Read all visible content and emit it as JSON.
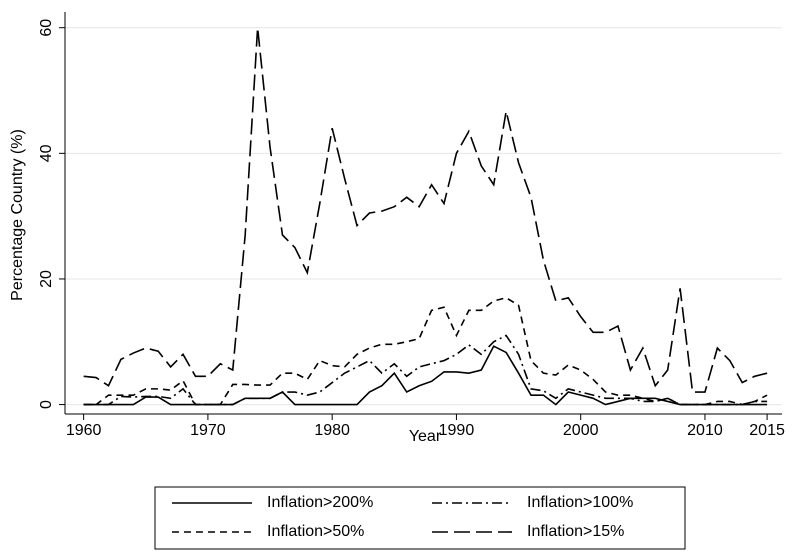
{
  "chart_data": {
    "type": "line",
    "x_label": "Year",
    "y_label": "Percentage Country (%)",
    "x": [
      1960,
      1961,
      1962,
      1963,
      1964,
      1965,
      1966,
      1967,
      1968,
      1969,
      1970,
      1971,
      1972,
      1973,
      1974,
      1975,
      1976,
      1977,
      1978,
      1979,
      1980,
      1981,
      1982,
      1983,
      1984,
      1985,
      1986,
      1987,
      1988,
      1989,
      1990,
      1991,
      1992,
      1993,
      1994,
      1995,
      1996,
      1997,
      1998,
      1999,
      2000,
      2001,
      2002,
      2003,
      2004,
      2005,
      2006,
      2007,
      2008,
      2009,
      2010,
      2011,
      2012,
      2013,
      2014,
      2015
    ],
    "xlim": [
      1958.5,
      2016.2
    ],
    "xticks": [
      1960,
      1970,
      1980,
      1990,
      2000,
      2010,
      2015
    ],
    "ylim": [
      -1.5,
      62.5
    ],
    "yticks": [
      0,
      20,
      40,
      60
    ],
    "grid": true,
    "series": [
      {
        "name": "Inflation>200%",
        "color": "#000000",
        "values": [
          0,
          0,
          0,
          0,
          0,
          1.2,
          1.2,
          0,
          0,
          0,
          0,
          0,
          0,
          1,
          1,
          1,
          2,
          0,
          0,
          0,
          0,
          0,
          0,
          2,
          3,
          5,
          2,
          3,
          3.7,
          5.2,
          5.2,
          5,
          5.5,
          9.3,
          8.3,
          5,
          1.5,
          1.5,
          0,
          2,
          1.5,
          1,
          0,
          0.5,
          1,
          1,
          1,
          0.5,
          0,
          0,
          0,
          0,
          0,
          0,
          0,
          0
        ]
      },
      {
        "name": "Inflation>100%",
        "color": "#000000",
        "values": [
          0,
          0,
          0,
          1.3,
          1.2,
          1.3,
          1.3,
          1,
          2.5,
          0,
          0,
          0,
          0,
          1,
          1,
          1,
          2,
          2,
          1.5,
          2,
          3.5,
          5,
          6,
          7,
          5,
          6.5,
          4.5,
          6,
          6.5,
          7,
          8,
          9.5,
          8,
          10,
          11,
          8,
          2.5,
          2.2,
          1,
          2.5,
          2,
          1.5,
          1,
          1,
          1,
          0.5,
          0.5,
          1,
          0,
          0,
          0,
          0,
          0,
          0,
          0.5,
          0.5
        ]
      },
      {
        "name": "Inflation>50%",
        "color": "#000000",
        "values": [
          0,
          0,
          1.5,
          1.5,
          1.5,
          2.5,
          2.5,
          2.3,
          3.8,
          0,
          0,
          0,
          3.2,
          3.2,
          3.1,
          3.1,
          5,
          5,
          4,
          7,
          6.2,
          6,
          8,
          9,
          9.6,
          9.6,
          10,
          10.5,
          15,
          15.5,
          11,
          15,
          15,
          16.5,
          17,
          15.8,
          7,
          5,
          4.7,
          6.3,
          5.5,
          4,
          2,
          1.5,
          1.5,
          1,
          0.5,
          1,
          0,
          0,
          0,
          0.5,
          0.5,
          0,
          0.5,
          1.5
        ]
      },
      {
        "name": "Inflation>15%",
        "color": "#000000",
        "values": [
          4.5,
          4.3,
          3,
          7.2,
          8.2,
          9,
          8.5,
          6,
          8,
          4.5,
          4.5,
          6.5,
          5.5,
          27,
          60,
          41,
          27,
          25,
          21,
          32,
          44,
          36,
          28.5,
          30.5,
          30.8,
          31.5,
          33,
          31.5,
          35,
          32,
          40,
          43.5,
          38,
          35,
          46.7,
          38.5,
          33,
          23,
          16.5,
          17,
          14,
          11.5,
          11.5,
          12.5,
          5.5,
          9,
          3,
          5.5,
          18.5,
          2,
          2,
          9,
          7,
          3.5,
          4.5,
          5
        ]
      }
    ]
  }
}
